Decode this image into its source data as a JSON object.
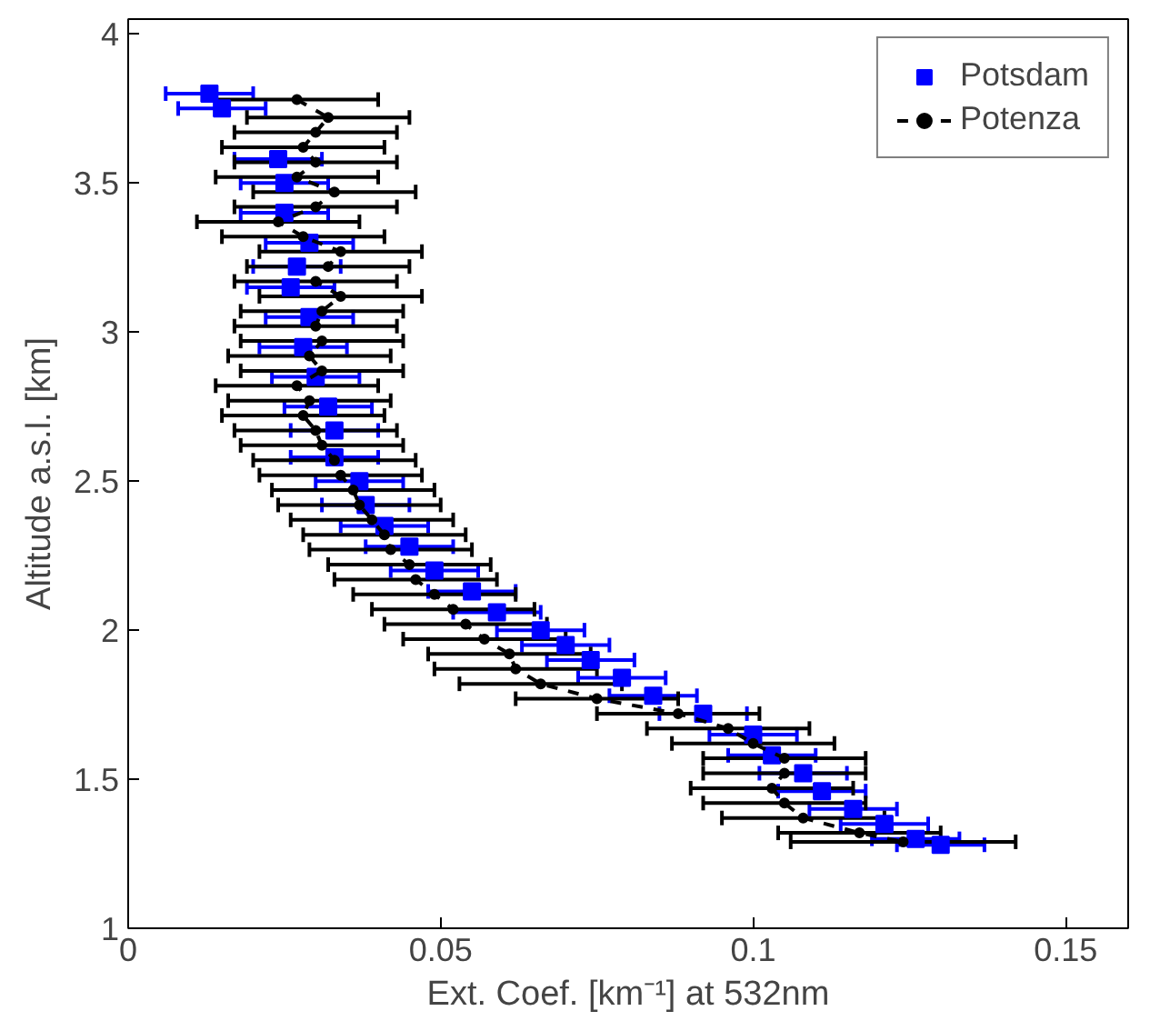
{
  "chart_data": {
    "type": "scatter",
    "xlabel": "Ext. Coef. [km⁻¹] at 532nm",
    "ylabel": "Altitude a.s.l. [km]",
    "xlim": [
      0,
      0.16
    ],
    "xticks": [
      0,
      0.05,
      0.1,
      0.15
    ],
    "ylim": [
      1,
      4.05
    ],
    "yticks": [
      1,
      1.5,
      2,
      2.5,
      3,
      3.5,
      4
    ],
    "grid": false,
    "legend": "top right",
    "series": [
      {
        "name": "Potsdam",
        "marker": "square",
        "color": "#0000ff",
        "x": [
          0.013,
          0.015,
          0.024,
          0.025,
          0.025,
          0.029,
          0.027,
          0.026,
          0.029,
          0.028,
          0.03,
          0.032,
          0.033,
          0.033,
          0.037,
          0.038,
          0.041,
          0.045,
          0.049,
          0.055,
          0.059,
          0.066,
          0.07,
          0.074,
          0.079,
          0.084,
          0.092,
          0.1,
          0.103,
          0.108,
          0.111,
          0.116,
          0.121,
          0.126,
          0.13
        ],
        "values": [
          3.8,
          3.75,
          3.58,
          3.5,
          3.4,
          3.3,
          3.22,
          3.15,
          3.05,
          2.95,
          2.85,
          2.75,
          2.67,
          2.58,
          2.5,
          2.42,
          2.35,
          2.28,
          2.2,
          2.13,
          2.06,
          2.0,
          1.95,
          1.9,
          1.84,
          1.78,
          1.72,
          1.65,
          1.58,
          1.52,
          1.46,
          1.4,
          1.35,
          1.3,
          1.28
        ],
        "xerrors": [
          0.007,
          0.007,
          0.007,
          0.007,
          0.007,
          0.007,
          0.007,
          0.007,
          0.007,
          0.007,
          0.007,
          0.007,
          0.007,
          0.007,
          0.007,
          0.007,
          0.007,
          0.007,
          0.007,
          0.007,
          0.007,
          0.007,
          0.007,
          0.007,
          0.007,
          0.007,
          0.007,
          0.007,
          0.007,
          0.007,
          0.007,
          0.007,
          0.007,
          0.007,
          0.007
        ]
      },
      {
        "name": "Potenza",
        "type": "line",
        "line_style": "dashed",
        "marker": "circle",
        "color": "#000000",
        "x": [
          0.027,
          0.032,
          0.03,
          0.028,
          0.03,
          0.027,
          0.033,
          0.03,
          0.024,
          0.028,
          0.034,
          0.032,
          0.03,
          0.034,
          0.031,
          0.03,
          0.031,
          0.029,
          0.031,
          0.027,
          0.029,
          0.028,
          0.03,
          0.031,
          0.033,
          0.034,
          0.036,
          0.037,
          0.039,
          0.041,
          0.042,
          0.045,
          0.046,
          0.049,
          0.052,
          0.054,
          0.057,
          0.061,
          0.062,
          0.066,
          0.075,
          0.088,
          0.096,
          0.1,
          0.105,
          0.105,
          0.103,
          0.105,
          0.108,
          0.117,
          0.124
        ],
        "values": [
          3.78,
          3.72,
          3.67,
          3.62,
          3.57,
          3.52,
          3.47,
          3.42,
          3.37,
          3.32,
          3.27,
          3.22,
          3.17,
          3.12,
          3.07,
          3.02,
          2.97,
          2.92,
          2.87,
          2.82,
          2.77,
          2.72,
          2.67,
          2.62,
          2.57,
          2.52,
          2.47,
          2.42,
          2.37,
          2.32,
          2.27,
          2.22,
          2.17,
          2.12,
          2.07,
          2.02,
          1.97,
          1.92,
          1.87,
          1.82,
          1.77,
          1.72,
          1.67,
          1.62,
          1.57,
          1.52,
          1.47,
          1.42,
          1.37,
          1.32,
          1.29
        ],
        "xerrors": [
          0.013,
          0.013,
          0.013,
          0.013,
          0.013,
          0.013,
          0.013,
          0.013,
          0.013,
          0.013,
          0.013,
          0.013,
          0.013,
          0.013,
          0.013,
          0.013,
          0.013,
          0.013,
          0.013,
          0.013,
          0.013,
          0.013,
          0.013,
          0.013,
          0.013,
          0.013,
          0.013,
          0.013,
          0.013,
          0.013,
          0.013,
          0.013,
          0.013,
          0.013,
          0.013,
          0.013,
          0.013,
          0.013,
          0.013,
          0.013,
          0.013,
          0.013,
          0.013,
          0.013,
          0.013,
          0.013,
          0.013,
          0.013,
          0.013,
          0.013,
          0.018
        ]
      }
    ]
  }
}
